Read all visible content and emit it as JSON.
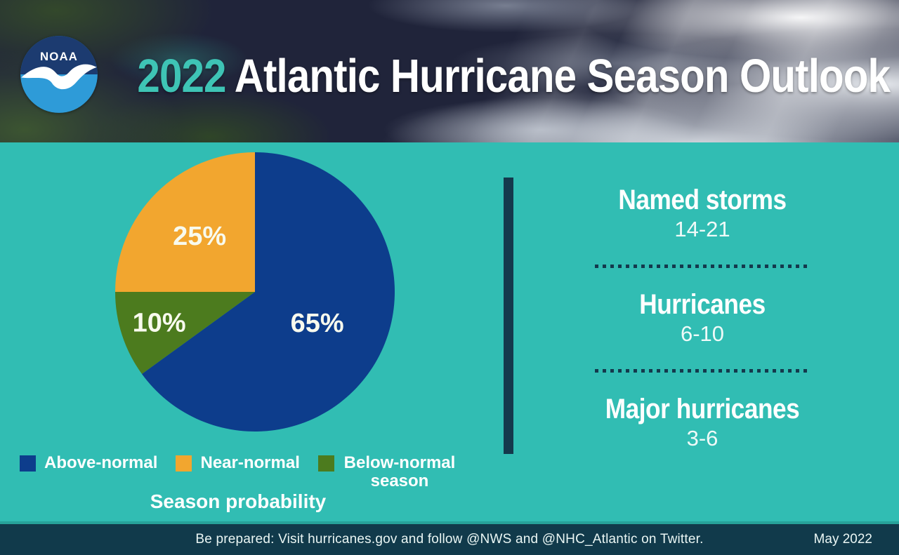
{
  "header": {
    "logo": {
      "text": "NOAA"
    },
    "title": {
      "year": "2022",
      "rest": "Atlantic Hurricane Season Outlook"
    }
  },
  "chart_data": {
    "type": "pie",
    "title": "Season probability",
    "start_angle_deg": 0,
    "direction": "clockwise",
    "slices": [
      {
        "label": "Above-normal",
        "value": 65,
        "display": "65%",
        "color": "#0D3D8C"
      },
      {
        "label": "Below-normal",
        "value": 10,
        "display": "10%",
        "color": "#4C7B1E"
      },
      {
        "label": "Near-normal",
        "value": 25,
        "display": "25%",
        "color": "#F2A62F"
      }
    ],
    "legend_position": "bottom",
    "legend": [
      {
        "label": "Above-normal",
        "color": "#0D3D8C"
      },
      {
        "label": "Near-normal",
        "color": "#F2A62F"
      },
      {
        "label": "Below-normal season",
        "color": "#4C7B1E"
      }
    ]
  },
  "stats": {
    "items": [
      {
        "label": "Named storms",
        "value": "14-21"
      },
      {
        "label": "Hurricanes",
        "value": "6-10"
      },
      {
        "label": "Major hurricanes",
        "value": "3-6"
      }
    ]
  },
  "footer": {
    "message": "Be prepared: Visit hurricanes.gov and follow @NWS and @NHC_Atlantic on Twitter.",
    "date": "May 2022"
  },
  "colors": {
    "background_teal": "#31BDB3",
    "accent_teal": "#3EC4B5",
    "dark_navy": "#14394C",
    "footer_bg": "#113A4B"
  }
}
